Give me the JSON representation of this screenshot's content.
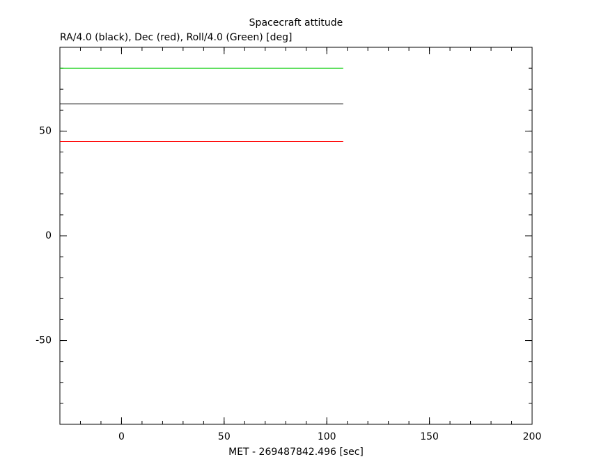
{
  "chart_data": {
    "type": "line",
    "title": "Spacecraft attitude",
    "ylabel": "RA/4.0 (black), Dec (red), Roll/4.0 (Green) [deg]",
    "xlabel": "MET - 269487842.496 [sec]",
    "x": [
      -30,
      108
    ],
    "series": [
      {
        "color": "#000000",
        "values": [
          63,
          63
        ]
      },
      {
        "color": "#ff0000",
        "values": [
          45,
          45
        ]
      },
      {
        "color": "#00cc00",
        "values": [
          80,
          80
        ]
      }
    ],
    "xlim": [
      -30,
      200
    ],
    "xticks": [
      0,
      50,
      100,
      150,
      200
    ],
    "ylim": [
      -90,
      90
    ],
    "yticks": [
      -50,
      0,
      50
    ]
  }
}
